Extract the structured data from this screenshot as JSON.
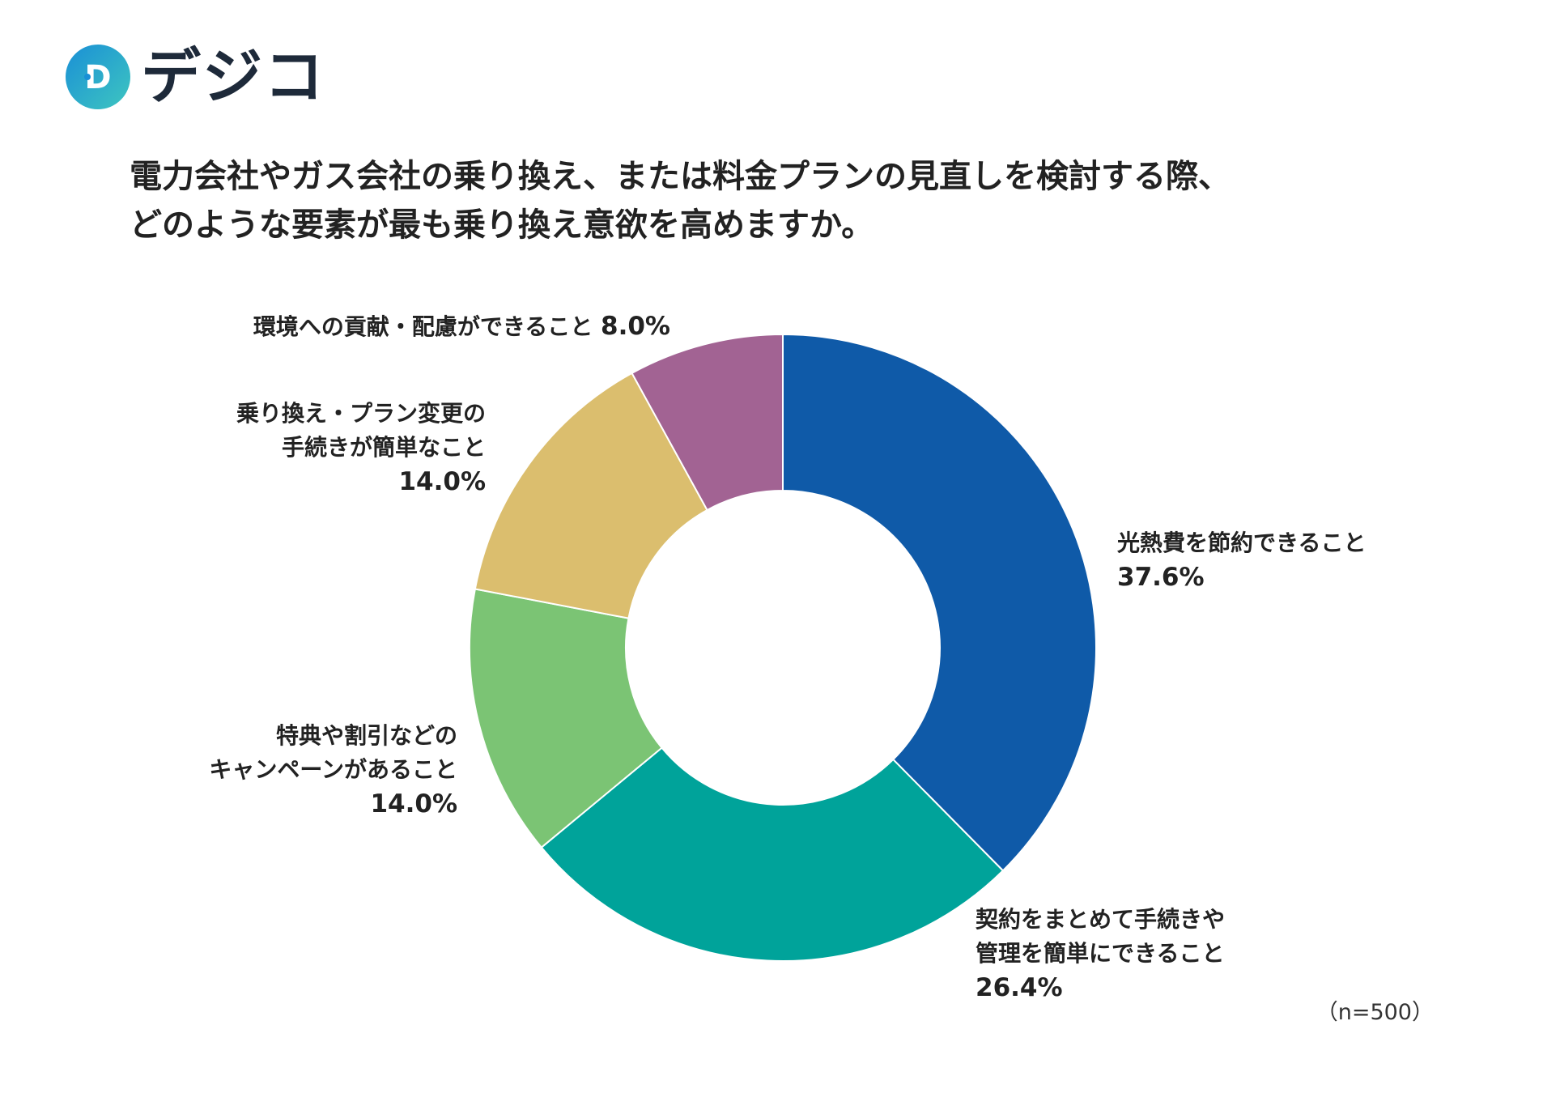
{
  "brand": {
    "logo_letter": "D",
    "name": "デジコ",
    "colors": {
      "ring_start": "#1a8fd6",
      "ring_end": "#3ec6c0",
      "text": "#1e2a3a"
    }
  },
  "title_lines": [
    "電力会社やガス会社の乗り換え、または料金プランの見直しを検討する際、",
    "どのような要素が最も乗り換え意欲を高めますか。"
  ],
  "footnote": "（n=500）",
  "chart_data": {
    "type": "pie",
    "donut": true,
    "start_angle": "12 o'clock",
    "direction": "clockwise",
    "slices": [
      {
        "label_lines": [
          "光熱費を節約できること"
        ],
        "value": 37.6,
        "value_label": "37.6%",
        "color": "#0f5aa8"
      },
      {
        "label_lines": [
          "契約をまとめて手続きや",
          "管理を簡単にできること"
        ],
        "value": 26.4,
        "value_label": "26.4%",
        "color": "#00a39a"
      },
      {
        "label_lines": [
          "特典や割引などの",
          "キャンペーンがあること"
        ],
        "value": 14.0,
        "value_label": "14.0%",
        "color": "#7bc474"
      },
      {
        "label_lines": [
          "乗り換え・プラン変更の",
          "手続きが簡単なこと"
        ],
        "value": 14.0,
        "value_label": "14.0%",
        "color": "#dbbe6e"
      },
      {
        "label_lines": [
          "環境への貢献・配慮ができること"
        ],
        "value": 8.0,
        "value_label": "8.0%",
        "color": "#a26393"
      }
    ]
  }
}
